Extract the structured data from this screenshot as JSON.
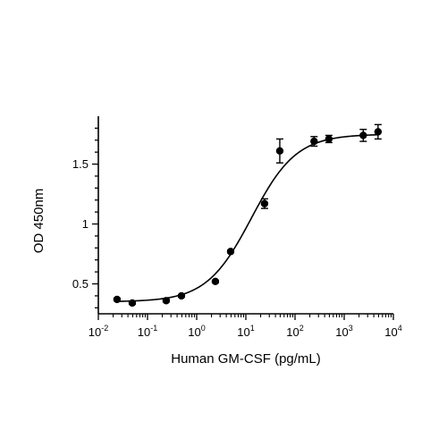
{
  "chart_data": {
    "type": "scatter",
    "title": "",
    "xlabel": "Human GM-CSF (pg/mL)",
    "ylabel": "OD 450nm",
    "x_scale": "log10",
    "xlim": [
      0.01,
      10000
    ],
    "ylim": [
      0.25,
      1.9
    ],
    "x_ticks": [
      {
        "value": 0.01,
        "base": "10",
        "exp": "-2"
      },
      {
        "value": 0.1,
        "base": "10",
        "exp": "-1"
      },
      {
        "value": 1,
        "base": "10",
        "exp": "0"
      },
      {
        "value": 10,
        "base": "10",
        "exp": "1"
      },
      {
        "value": 100,
        "base": "10",
        "exp": "2"
      },
      {
        "value": 1000,
        "base": "10",
        "exp": "3"
      },
      {
        "value": 10000,
        "base": "10",
        "exp": "4"
      }
    ],
    "y_ticks": [
      {
        "value": 0.5,
        "label": "0.5"
      },
      {
        "value": 1,
        "label": "1"
      },
      {
        "value": 1.5,
        "label": "1.5"
      }
    ],
    "grid": false,
    "legend": "none",
    "marker_color": "#000000",
    "series": [
      {
        "x": [
          0.024,
          0.049,
          0.24,
          0.49,
          2.4,
          4.9,
          24,
          49,
          244,
          488,
          2441,
          4883
        ],
        "y": [
          0.37,
          0.34,
          0.36,
          0.4,
          0.52,
          0.77,
          1.17,
          1.61,
          1.69,
          1.71,
          1.74,
          1.77
        ],
        "error": [
          0.01,
          0.01,
          0.01,
          0.01,
          0.01,
          0.01,
          0.04,
          0.1,
          0.04,
          0.03,
          0.05,
          0.06
        ]
      }
    ],
    "fit": {
      "type": "4PL",
      "bottom": 0.35,
      "top": 1.75,
      "ec50": 13,
      "hill": 0.95
    }
  }
}
